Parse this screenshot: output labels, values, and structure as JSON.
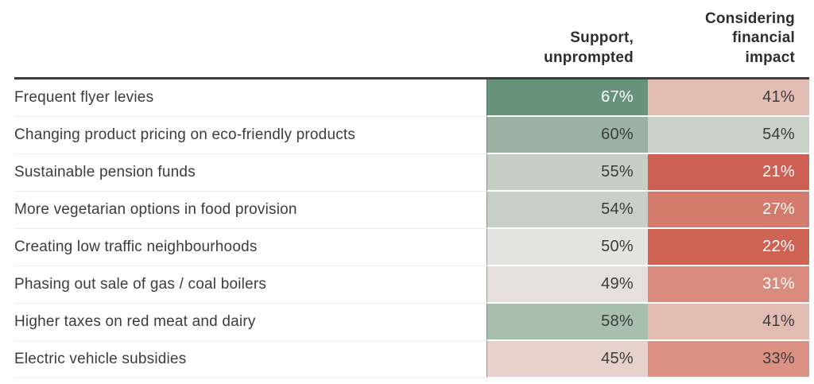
{
  "header": {
    "col1": "Support,\nunprompted",
    "col2": "Considering\nfinancial\nimpact"
  },
  "table": {
    "rows": [
      {
        "label": "Frequent flyer levies",
        "support": {
          "value": "67%",
          "bg": "#67937a",
          "fg": "#ffffff"
        },
        "impact": {
          "value": "41%",
          "bg": "#e3bcb4",
          "fg": "#3c3c3c"
        }
      },
      {
        "label": "Changing product pricing on eco-friendly products",
        "support": {
          "value": "60%",
          "bg": "#9bb2a3",
          "fg": "#3c3c3c"
        },
        "impact": {
          "value": "54%",
          "bg": "#c9d2ca",
          "fg": "#3c3c3c"
        }
      },
      {
        "label": "Sustainable pension funds",
        "support": {
          "value": "55%",
          "bg": "#c5cfc6",
          "fg": "#3c3c3c"
        },
        "impact": {
          "value": "21%",
          "bg": "#cd6052",
          "fg": "#ffffff"
        }
      },
      {
        "label": "More vegetarian options in food provision",
        "support": {
          "value": "54%",
          "bg": "#c7d0c8",
          "fg": "#3c3c3c"
        },
        "impact": {
          "value": "27%",
          "bg": "#d47b6d",
          "fg": "#ffffff"
        }
      },
      {
        "label": "Creating low traffic neighbourhoods",
        "support": {
          "value": "50%",
          "bg": "#e3e3e1",
          "fg": "#3c3c3c"
        },
        "impact": {
          "value": "22%",
          "bg": "#ce6253",
          "fg": "#ffffff"
        }
      },
      {
        "label": "Phasing out sale of gas / coal boilers",
        "support": {
          "value": "49%",
          "bg": "#e5dfdd",
          "fg": "#3c3c3c"
        },
        "impact": {
          "value": "31%",
          "bg": "#da8b7d",
          "fg": "#ffffff"
        }
      },
      {
        "label": "Higher taxes on red meat and dairy",
        "support": {
          "value": "58%",
          "bg": "#a9bfae",
          "fg": "#3c3c3c"
        },
        "impact": {
          "value": "41%",
          "bg": "#e2bbb3",
          "fg": "#3c3c3c"
        }
      },
      {
        "label": "Electric vehicle subsidies",
        "support": {
          "value": "45%",
          "bg": "#e6d1cc",
          "fg": "#3c3c3c"
        },
        "impact": {
          "value": "33%",
          "bg": "#dc9184",
          "fg": "#3c3c3c"
        }
      }
    ]
  },
  "chart_data": {
    "type": "heatmap",
    "title": "",
    "columns": [
      "Support, unprompted",
      "Considering financial impact"
    ],
    "categories": [
      "Frequent flyer levies",
      "Changing product pricing on eco-friendly products",
      "Sustainable pension funds",
      "More vegetarian options in food provision",
      "Creating low traffic neighbourhoods",
      "Phasing out sale of gas / coal boilers",
      "Higher taxes on red meat and dairy",
      "Electric vehicle subsidies"
    ],
    "series": [
      {
        "name": "Support, unprompted",
        "values": [
          67,
          60,
          55,
          54,
          50,
          49,
          58,
          45
        ]
      },
      {
        "name": "Considering financial impact",
        "values": [
          41,
          54,
          21,
          27,
          22,
          31,
          41,
          33
        ]
      }
    ],
    "unit": "%",
    "color_scale": {
      "low_color": "#cd6052",
      "mid_color": "#e3e3e1",
      "high_color": "#67937a",
      "note": "diverging red (low) to green (high)"
    },
    "legend_position": "none",
    "grid": false
  }
}
